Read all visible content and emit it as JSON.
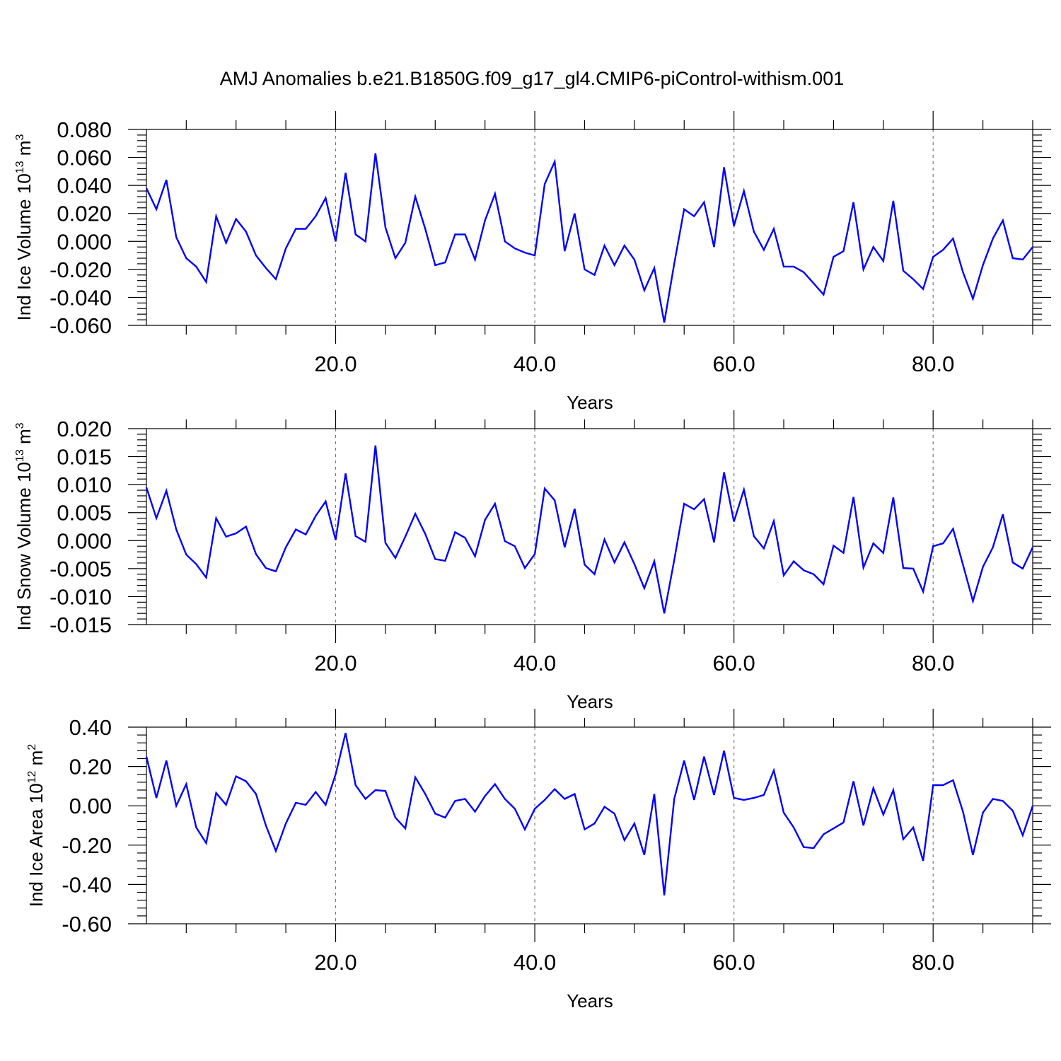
{
  "title": "AMJ Anomalies b.e21.B1850G.f09_g17_gl4.CMIP6-piControl-withism.001",
  "colors": {
    "line": "#0000ff",
    "grid": "#777777",
    "axes": "#000000"
  },
  "chart_data": [
    {
      "type": "line",
      "ylabel_main": "Ind Ice Volume 10",
      "ylabel_exp": "13",
      "ylabel_unit": " m",
      "ylabel_unit_exp": "3",
      "xlabel": "Years",
      "xlim": [
        1,
        90
      ],
      "ylim": [
        -0.06,
        0.08
      ],
      "x_ticks": [
        "20.0",
        "40.0",
        "60.0",
        "80.0"
      ],
      "x_tick_values": [
        20,
        40,
        60,
        80
      ],
      "y_ticks": [
        "0.080",
        "0.060",
        "0.040",
        "0.020",
        "0.000",
        "-0.020",
        "-0.040",
        "-0.060"
      ],
      "y_tick_values": [
        0.08,
        0.06,
        0.04,
        0.02,
        0.0,
        -0.02,
        -0.04,
        -0.06
      ],
      "grid": "vertical dashed at major x ticks",
      "series": [
        {
          "x_start": 1,
          "values": [
            0.038,
            0.023,
            0.044,
            0.003,
            -0.012,
            -0.018,
            -0.029,
            0.018,
            -0.001,
            0.016,
            0.007,
            -0.01,
            -0.019,
            -0.027,
            -0.005,
            0.009,
            0.009,
            0.018,
            0.031,
            0.0,
            0.049,
            0.005,
            0.0,
            0.063,
            0.01,
            -0.012,
            -0.001,
            0.032,
            0.009,
            -0.017,
            -0.015,
            0.005,
            0.005,
            -0.013,
            0.015,
            0.034,
            0.0,
            -0.005,
            -0.008,
            -0.01,
            0.041,
            0.057,
            -0.007,
            0.02,
            -0.02,
            -0.024,
            -0.003,
            -0.017,
            -0.003,
            -0.013,
            -0.035,
            -0.019,
            -0.058,
            -0.016,
            0.023,
            0.018,
            0.028,
            -0.004,
            0.053,
            0.011,
            0.036,
            0.007,
            -0.006,
            0.009,
            -0.018,
            -0.018,
            -0.022,
            -0.03,
            -0.038,
            -0.011,
            -0.007,
            0.028,
            -0.02,
            -0.004,
            -0.014,
            0.029,
            -0.021,
            -0.027,
            -0.034,
            -0.011,
            -0.006,
            0.002,
            -0.022,
            -0.041,
            -0.017,
            0.002,
            0.015,
            -0.012,
            -0.013,
            -0.004
          ]
        }
      ]
    },
    {
      "type": "line",
      "ylabel_main": "Ind Snow Volume 10",
      "ylabel_exp": "13",
      "ylabel_unit": " m",
      "ylabel_unit_exp": "3",
      "xlabel": "Years",
      "xlim": [
        1,
        90
      ],
      "ylim": [
        -0.015,
        0.02
      ],
      "x_ticks": [
        "20.0",
        "40.0",
        "60.0",
        "80.0"
      ],
      "x_tick_values": [
        20,
        40,
        60,
        80
      ],
      "y_ticks": [
        "0.020",
        "0.015",
        "0.010",
        "0.005",
        "0.000",
        "-0.005",
        "-0.010",
        "-0.015"
      ],
      "y_tick_values": [
        0.02,
        0.015,
        0.01,
        0.005,
        0.0,
        -0.005,
        -0.01,
        -0.015
      ],
      "grid": "vertical dashed at major x ticks",
      "series": [
        {
          "x_start": 1,
          "values": [
            0.0095,
            0.004,
            0.0089,
            0.002,
            -0.0025,
            -0.0042,
            -0.0066,
            0.004,
            0.0007,
            0.0013,
            0.0025,
            -0.0024,
            -0.0049,
            -0.0055,
            -0.0012,
            0.002,
            0.0011,
            0.0044,
            0.007,
            0.0001,
            0.012,
            0.0008,
            -0.0002,
            0.017,
            -0.0004,
            -0.0031,
            0.0007,
            0.0048,
            0.0012,
            -0.0033,
            -0.0036,
            0.0015,
            0.0005,
            -0.0028,
            0.0037,
            0.0066,
            -0.0001,
            -0.001,
            -0.0049,
            -0.0024,
            0.0093,
            0.0072,
            -0.0012,
            0.0057,
            -0.0043,
            -0.006,
            0.0002,
            -0.0039,
            -0.0003,
            -0.0042,
            -0.0085,
            -0.0037,
            -0.013,
            -0.0035,
            0.0066,
            0.0056,
            0.0074,
            -0.0003,
            0.0122,
            0.0034,
            0.0091,
            0.0008,
            -0.0014,
            0.0035,
            -0.0062,
            -0.0037,
            -0.0053,
            -0.006,
            -0.0078,
            -0.0009,
            -0.0022,
            0.0078,
            -0.0048,
            -0.0005,
            -0.0022,
            0.0077,
            -0.0049,
            -0.005,
            -0.0091,
            -0.001,
            -0.0005,
            0.0021,
            -0.0043,
            -0.0108,
            -0.0047,
            -0.0012,
            0.0047,
            -0.0039,
            -0.005,
            -0.0012
          ]
        }
      ]
    },
    {
      "type": "line",
      "ylabel_main": "Ind Ice Area 10",
      "ylabel_exp": "12",
      "ylabel_unit": " m",
      "ylabel_unit_exp": "2",
      "xlabel": "Years",
      "xlim": [
        1,
        90
      ],
      "ylim": [
        -0.6,
        0.4
      ],
      "x_ticks": [
        "20.0",
        "40.0",
        "60.0",
        "80.0"
      ],
      "x_tick_values": [
        20,
        40,
        60,
        80
      ],
      "y_ticks": [
        "0.40",
        "0.20",
        "0.00",
        "-0.20",
        "-0.40",
        "-0.60"
      ],
      "y_tick_values": [
        0.4,
        0.2,
        0.0,
        -0.2,
        -0.4,
        -0.6
      ],
      "grid": "vertical dashed at major x ticks",
      "series": [
        {
          "x_start": 1,
          "values": [
            0.25,
            0.04,
            0.23,
            0.0,
            0.11,
            -0.11,
            -0.19,
            0.065,
            0.005,
            0.15,
            0.125,
            0.06,
            -0.1,
            -0.23,
            -0.09,
            0.015,
            0.005,
            0.07,
            0.005,
            0.16,
            0.37,
            0.105,
            0.035,
            0.08,
            0.075,
            -0.06,
            -0.115,
            0.145,
            0.06,
            -0.04,
            -0.06,
            0.025,
            0.035,
            -0.03,
            0.05,
            0.11,
            0.035,
            -0.015,
            -0.12,
            -0.015,
            0.03,
            0.085,
            0.035,
            0.06,
            -0.12,
            -0.09,
            -0.005,
            -0.04,
            -0.175,
            -0.09,
            -0.25,
            0.06,
            -0.455,
            0.035,
            0.23,
            0.03,
            0.25,
            0.055,
            0.28,
            0.04,
            0.03,
            0.04,
            0.055,
            0.18,
            -0.035,
            -0.11,
            -0.21,
            -0.215,
            -0.145,
            -0.115,
            -0.085,
            0.125,
            -0.1,
            0.09,
            -0.045,
            0.08,
            -0.17,
            -0.11,
            -0.28,
            0.105,
            0.105,
            0.13,
            -0.03,
            -0.25,
            -0.035,
            0.035,
            0.025,
            -0.025,
            -0.15,
            0.0
          ]
        }
      ]
    }
  ]
}
